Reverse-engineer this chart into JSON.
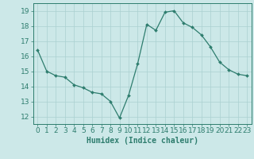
{
  "x": [
    0,
    1,
    2,
    3,
    4,
    5,
    6,
    7,
    8,
    9,
    10,
    11,
    12,
    13,
    14,
    15,
    16,
    17,
    18,
    19,
    20,
    21,
    22,
    23
  ],
  "y": [
    16.4,
    15.0,
    14.7,
    14.6,
    14.1,
    13.9,
    13.6,
    13.5,
    13.0,
    11.9,
    13.4,
    15.5,
    18.1,
    17.7,
    18.9,
    19.0,
    18.2,
    17.9,
    17.4,
    16.6,
    15.6,
    15.1,
    14.8,
    14.7
  ],
  "xlabel": "Humidex (Indice chaleur)",
  "ylim": [
    11.5,
    19.5
  ],
  "xlim": [
    -0.5,
    23.5
  ],
  "yticks": [
    12,
    13,
    14,
    15,
    16,
    17,
    18,
    19
  ],
  "xticks": [
    0,
    1,
    2,
    3,
    4,
    5,
    6,
    7,
    8,
    9,
    10,
    11,
    12,
    13,
    14,
    15,
    16,
    17,
    18,
    19,
    20,
    21,
    22,
    23
  ],
  "line_color": "#2e7d6e",
  "marker": "D",
  "marker_size": 2.0,
  "bg_color": "#cce8e8",
  "grid_color": "#aad0d0",
  "axis_color": "#2e7d6e",
  "tick_color": "#2e7d6e",
  "xlabel_color": "#2e7d6e",
  "xlabel_fontsize": 7,
  "tick_fontsize": 6.5
}
